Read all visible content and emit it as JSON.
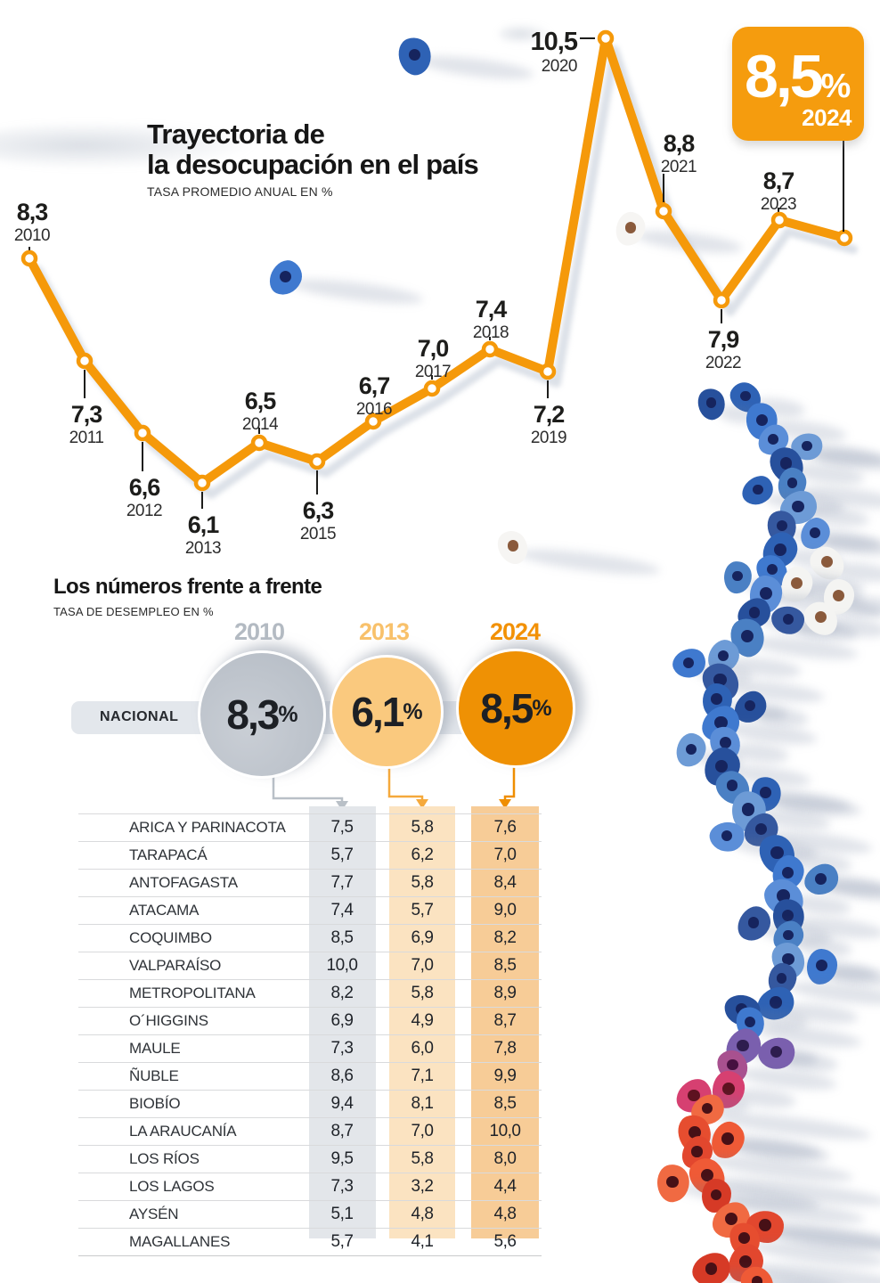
{
  "ui": {
    "chart_title_line1": "Trayectoria de",
    "chart_title_line2": "la desocupación en el país",
    "chart_subtitle": "TASA PROMEDIO ANUAL EN %",
    "badge": {
      "value": "8,5",
      "suffix": "%",
      "year": "2024"
    },
    "point_labels": [
      {
        "value": "8,3",
        "year": "2010"
      },
      {
        "value": "7,3",
        "year": "2011"
      },
      {
        "value": "6,6",
        "year": "2012"
      },
      {
        "value": "6,1",
        "year": "2013"
      },
      {
        "value": "6,5",
        "year": "2014"
      },
      {
        "value": "6,3",
        "year": "2015"
      },
      {
        "value": "6,7",
        "year": "2016"
      },
      {
        "value": "7,0",
        "year": "2017"
      },
      {
        "value": "7,4",
        "year": "2018"
      },
      {
        "value": "7,2",
        "year": "2019"
      },
      {
        "value": "10,5",
        "year": "2020"
      },
      {
        "value": "8,8",
        "year": "2021"
      },
      {
        "value": "7,9",
        "year": "2022"
      },
      {
        "value": "8,7",
        "year": "2023"
      },
      {
        "value": "8,5",
        "year": "2024"
      }
    ],
    "compare_title": "Los números frente a frente",
    "compare_subtitle": "TASA DE DESEMPLEO EN %",
    "national_label": "NACIONAL",
    "years": [
      {
        "label": "2010",
        "value": "8,3",
        "suffix": "%",
        "color": "#b3bac2",
        "circle_color": "#bcc2c9",
        "column_color": "#e3e6ea"
      },
      {
        "label": "2013",
        "value": "6,1",
        "suffix": "%",
        "color": "#f8c16b",
        "circle_color": "#fac97e",
        "column_color": "#fbe3c1"
      },
      {
        "label": "2024",
        "value": "8,5",
        "suffix": "%",
        "color": "#f29105",
        "circle_color": "#ef9104",
        "column_color": "#f7cc97"
      }
    ],
    "table_rows": [
      {
        "region": "ARICA Y PARINACOTA",
        "values": [
          "7,5",
          "5,8",
          "7,6"
        ]
      },
      {
        "region": "TARAPACÁ",
        "values": [
          "5,7",
          "6,2",
          "7,0"
        ]
      },
      {
        "region": "ANTOFAGASTA",
        "values": [
          "7,7",
          "5,8",
          "8,4"
        ]
      },
      {
        "region": "ATACAMA",
        "values": [
          "7,4",
          "5,7",
          "9,0"
        ]
      },
      {
        "region": "COQUIMBO",
        "values": [
          "8,5",
          "6,9",
          "8,2"
        ]
      },
      {
        "region": "VALPARAÍSO",
        "values": [
          "10,0",
          "7,0",
          "8,5"
        ]
      },
      {
        "region": "METROPOLITANA",
        "values": [
          "8,2",
          "5,8",
          "8,9"
        ]
      },
      {
        "region": "O´HIGGINS",
        "values": [
          "6,9",
          "4,9",
          "8,7"
        ]
      },
      {
        "region": "MAULE",
        "values": [
          "7,3",
          "6,0",
          "7,8"
        ]
      },
      {
        "region": "ÑUBLE",
        "values": [
          "8,6",
          "7,1",
          "9,9"
        ]
      },
      {
        "region": "BIOBÍO",
        "values": [
          "9,4",
          "8,1",
          "8,5"
        ]
      },
      {
        "region": "LA ARAUCANÍA",
        "values": [
          "8,7",
          "7,0",
          "10,0"
        ]
      },
      {
        "region": "LOS RÍOS",
        "values": [
          "9,5",
          "5,8",
          "8,0"
        ]
      },
      {
        "region": "LOS LAGOS",
        "values": [
          "7,3",
          "3,2",
          "4,4"
        ]
      },
      {
        "region": "AYSÉN",
        "values": [
          "5,1",
          "4,8",
          "4,8"
        ]
      },
      {
        "region": "MAGALLANES",
        "values": [
          "5,7",
          "4,1",
          "5,6"
        ]
      }
    ],
    "colors": {
      "accent_orange": "#f5990a",
      "accent_light_orange": "#fac97e",
      "accent_gray": "#b9c0c7",
      "line_shadow": "#c7cfda",
      "text_dark": "#1d1d1b"
    }
  },
  "chart_data": [
    {
      "type": "line",
      "title": "Trayectoria de la desocupación en el país",
      "subtitle": "TASA PROMEDIO ANUAL EN %",
      "x": [
        2010,
        2011,
        2012,
        2013,
        2014,
        2015,
        2016,
        2017,
        2018,
        2019,
        2020,
        2021,
        2022,
        2023,
        2024
      ],
      "values": [
        8.3,
        7.3,
        6.6,
        6.1,
        6.5,
        6.3,
        6.7,
        7.0,
        7.4,
        7.2,
        10.5,
        8.8,
        7.9,
        8.7,
        8.5
      ],
      "line_color": "#f5990a",
      "marker": "white-circle-orange-ring",
      "highlight": {
        "year": 2024,
        "value": 8.5
      },
      "grid": false,
      "legend": false
    },
    {
      "type": "table",
      "title": "Los números frente a frente",
      "subtitle": "TASA DE DESEMPLEO EN %",
      "columns": [
        "2010",
        "2013",
        "2024"
      ],
      "national": {
        "2010": 8.3,
        "2013": 6.1,
        "2024": 8.5
      },
      "rows": [
        {
          "region": "ARICA Y PARINACOTA",
          "2010": 7.5,
          "2013": 5.8,
          "2024": 7.6
        },
        {
          "region": "TARAPACÁ",
          "2010": 5.7,
          "2013": 6.2,
          "2024": 7.0
        },
        {
          "region": "ANTOFAGASTA",
          "2010": 7.7,
          "2013": 5.8,
          "2024": 8.4
        },
        {
          "region": "ATACAMA",
          "2010": 7.4,
          "2013": 5.7,
          "2024": 9.0
        },
        {
          "region": "COQUIMBO",
          "2010": 8.5,
          "2013": 6.9,
          "2024": 8.2
        },
        {
          "region": "VALPARAÍSO",
          "2010": 10.0,
          "2013": 7.0,
          "2024": 8.5
        },
        {
          "region": "METROPOLITANA",
          "2010": 8.2,
          "2013": 5.8,
          "2024": 8.9
        },
        {
          "region": "O´HIGGINS",
          "2010": 6.9,
          "2013": 4.9,
          "2024": 8.7
        },
        {
          "region": "MAULE",
          "2010": 7.3,
          "2013": 6.0,
          "2024": 7.8
        },
        {
          "region": "ÑUBLE",
          "2010": 8.6,
          "2013": 7.1,
          "2024": 9.9
        },
        {
          "region": "BIOBÍO",
          "2010": 9.4,
          "2013": 8.1,
          "2024": 8.5
        },
        {
          "region": "LA ARAUCANÍA",
          "2010": 8.7,
          "2013": 7.0,
          "2024": 10.0
        },
        {
          "region": "LOS RÍOS",
          "2010": 9.5,
          "2013": 5.8,
          "2024": 8.0
        },
        {
          "region": "LOS LAGOS",
          "2010": 7.3,
          "2013": 3.2,
          "2024": 4.4
        },
        {
          "region": "AYSÉN",
          "2010": 5.1,
          "2013": 4.8,
          "2024": 4.8
        },
        {
          "region": "MAGALLANES",
          "2010": 5.7,
          "2013": 4.1,
          "2024": 5.6
        }
      ]
    }
  ]
}
